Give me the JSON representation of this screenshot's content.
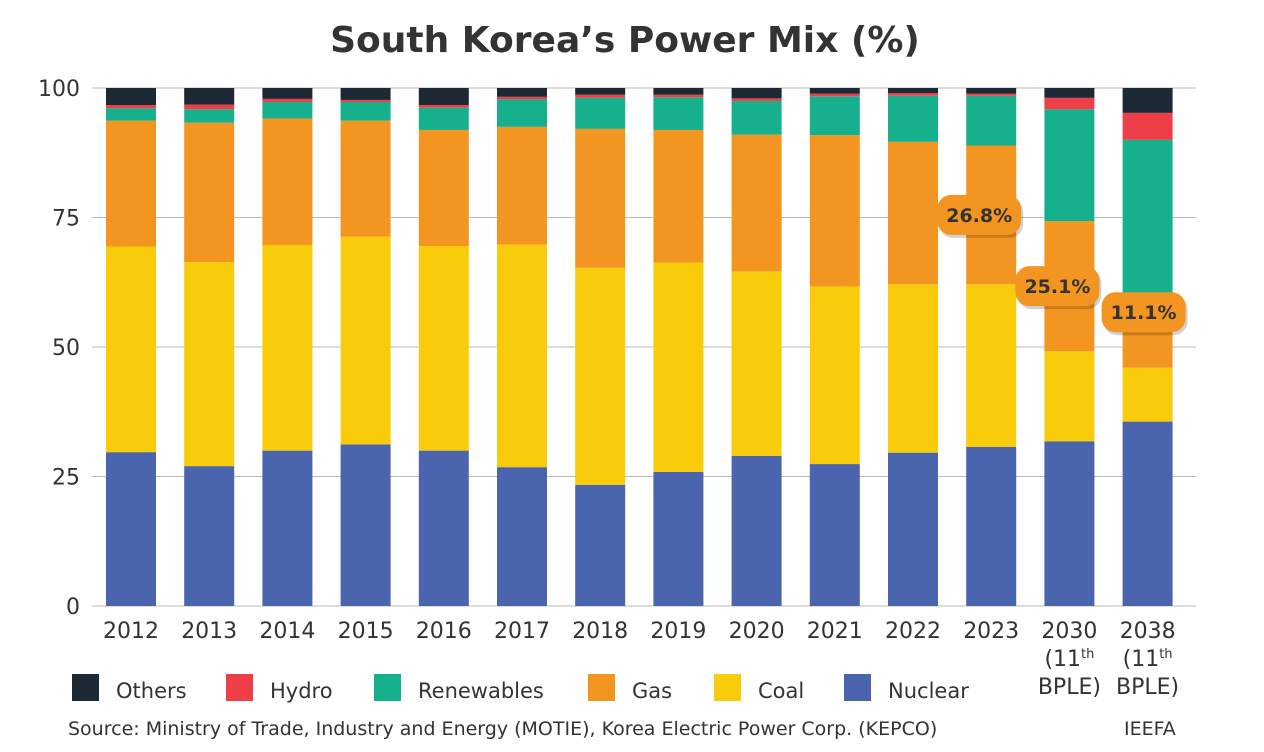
{
  "chart_data": {
    "type": "bar",
    "stacked": true,
    "title": "South Korea’s Power Mix (%)",
    "xlabel": "",
    "ylabel": "",
    "ylim": [
      0,
      100
    ],
    "yticks": [
      0,
      25,
      50,
      75,
      100
    ],
    "grid": "horizontal",
    "legend_position": "bottom",
    "categories": [
      [
        "2012"
      ],
      [
        "2013"
      ],
      [
        "2014"
      ],
      [
        "2015"
      ],
      [
        "2016"
      ],
      [
        "2017"
      ],
      [
        "2018"
      ],
      [
        "2019"
      ],
      [
        "2020"
      ],
      [
        "2021"
      ],
      [
        "2022"
      ],
      [
        "2023"
      ],
      [
        "2030",
        "(11th",
        "BPLE)"
      ],
      [
        "2038",
        "(11th",
        "BPLE)"
      ]
    ],
    "series": [
      {
        "name": "Nuclear",
        "color": "#4A64AE",
        "values": [
          29.7,
          27.0,
          30.0,
          31.2,
          30.0,
          26.8,
          23.4,
          25.9,
          29.0,
          27.4,
          29.6,
          30.7,
          31.8,
          35.6
        ]
      },
      {
        "name": "Coal",
        "color": "#F8CC0B",
        "values": [
          39.7,
          39.4,
          39.7,
          40.1,
          39.5,
          43.0,
          41.9,
          40.4,
          35.6,
          34.3,
          32.5,
          31.4,
          17.4,
          10.4
        ]
      },
      {
        "name": "Gas",
        "color": "#F39521",
        "values": [
          24.3,
          26.9,
          24.4,
          22.4,
          22.4,
          22.7,
          26.8,
          25.6,
          26.4,
          29.2,
          27.5,
          26.8,
          25.1,
          11.1
        ]
      },
      {
        "name": "Renewables",
        "color": "#16B08C",
        "values": [
          2.4,
          2.6,
          3.2,
          3.6,
          4.3,
          5.3,
          6.0,
          6.3,
          6.5,
          7.5,
          8.9,
          9.6,
          21.6,
          32.9
        ]
      },
      {
        "name": "Hydro",
        "color": "#EE3E47",
        "values": [
          0.6,
          0.9,
          0.6,
          0.4,
          0.5,
          0.5,
          0.6,
          0.5,
          0.5,
          0.5,
          0.5,
          0.4,
          2.2,
          5.2
        ]
      },
      {
        "name": "Others",
        "color": "#1C2833",
        "values": [
          3.3,
          3.2,
          2.1,
          2.3,
          3.3,
          1.7,
          1.3,
          1.3,
          2.0,
          1.1,
          1.0,
          1.1,
          1.9,
          4.8
        ]
      }
    ],
    "annotations": [
      {
        "text": "26.8%",
        "category": "2023",
        "series": "Gas"
      },
      {
        "text": "25.1%",
        "category": "2030",
        "series": "Gas"
      },
      {
        "text": "11.1%",
        "category": "2038",
        "series": "Gas"
      }
    ],
    "legend_order": [
      "Others",
      "Hydro",
      "Renewables",
      "Gas",
      "Coal",
      "Nuclear"
    ]
  },
  "footer": {
    "source": "Source: Ministry of Trade, Industry and Energy (MOTIE), Korea Electric Power Corp. (KEPCO)",
    "credit": "IEEFA"
  },
  "colors": {
    "text": "#333333",
    "grid": "#BBBBBB",
    "callout_fill": "#F39521"
  }
}
